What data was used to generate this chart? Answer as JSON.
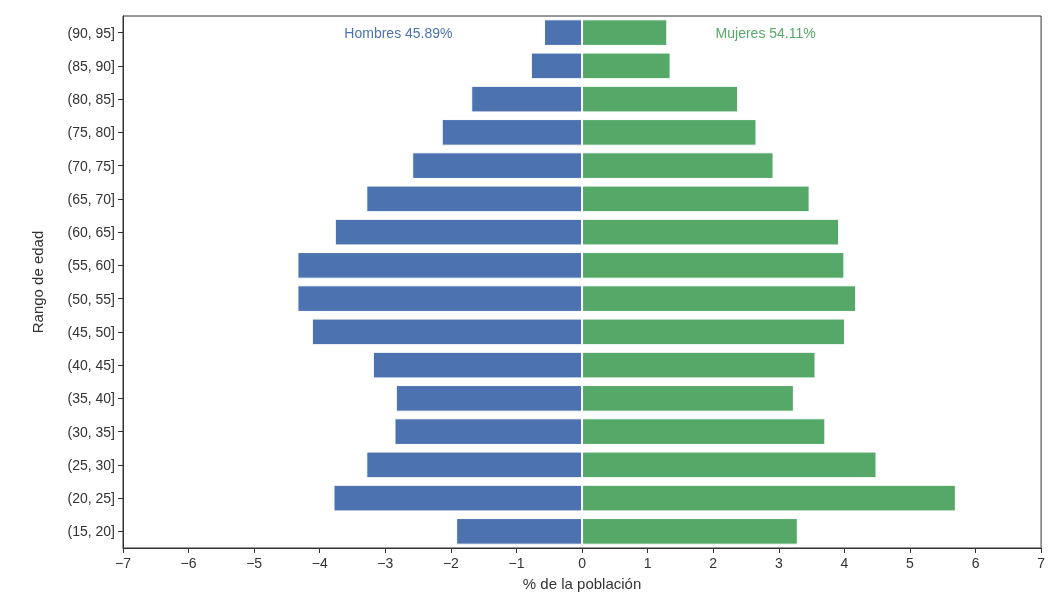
{
  "chart_data": {
    "type": "bar",
    "orientation": "horizontal",
    "stacked": true,
    "xlabel": "% de la población",
    "ylabel": "Rango de edad",
    "categories": [
      "(90, 95]",
      "(85, 90]",
      "(80, 85]",
      "(75, 80]",
      "(70, 75]",
      "(65, 70]",
      "(60, 65]",
      "(55, 60]",
      "(50, 55]",
      "(45, 50]",
      "(40, 45]",
      "(35, 40]",
      "(30, 35]",
      "(25, 30]",
      "(20, 25]",
      "(15, 20]"
    ],
    "series": [
      {
        "name": "Hombres 45.89%",
        "color": "#4c72b0",
        "values": [
          -0.58,
          -0.78,
          -1.69,
          -2.14,
          -2.59,
          -3.29,
          -3.77,
          -4.34,
          -4.34,
          -4.12,
          -3.19,
          -2.84,
          -2.86,
          -3.29,
          -3.79,
          -1.92
        ]
      },
      {
        "name": "Mujeres 54.11%",
        "color": "#55a868",
        "values": [
          1.3,
          1.35,
          2.38,
          2.66,
          2.92,
          3.47,
          3.92,
          4.0,
          4.18,
          4.01,
          3.56,
          3.23,
          3.71,
          4.49,
          5.7,
          3.29
        ]
      }
    ],
    "xlim": [
      -7,
      7
    ],
    "xticks": [
      -7,
      -6,
      -5,
      -4,
      -3,
      -2,
      -1,
      0,
      1,
      2,
      3,
      4,
      5,
      6,
      7
    ],
    "grid": false
  }
}
